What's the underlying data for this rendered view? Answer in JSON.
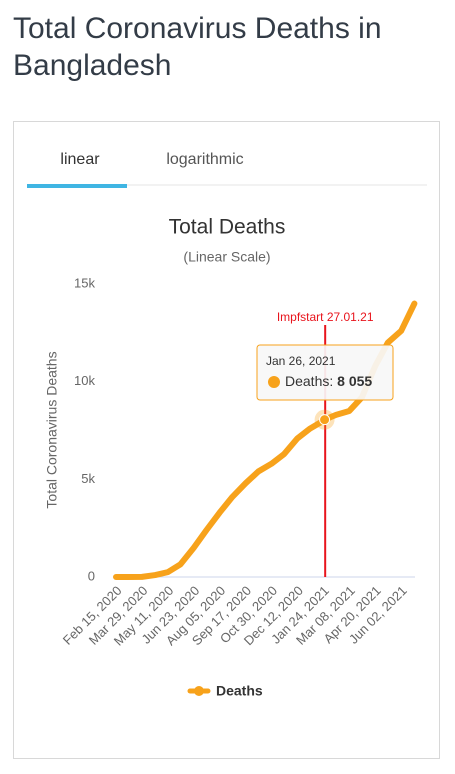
{
  "header": {
    "title": "Total Coronavirus Deaths in Bangladesh"
  },
  "tabs": [
    "linear",
    "logarithmic"
  ],
  "chart_data": {
    "type": "line",
    "title": "Total Deaths",
    "subtitle": "(Linear Scale)",
    "y_label": "Total Coronavirus Deaths",
    "x": [
      "2020-02-15",
      "2020-03-29",
      "2020-04-20",
      "2020-05-11",
      "2020-06-01",
      "2020-06-23",
      "2020-07-14",
      "2020-08-05",
      "2020-08-26",
      "2020-09-17",
      "2020-10-08",
      "2020-10-30",
      "2020-11-20",
      "2020-12-12",
      "2021-01-02",
      "2021-01-24",
      "2021-01-26",
      "2021-02-14",
      "2021-03-08",
      "2021-03-29",
      "2021-04-20",
      "2021-05-11",
      "2021-06-02",
      "2021-06-24"
    ],
    "series": [
      {
        "name": "Deaths",
        "color": "#f7a21b",
        "values": [
          0,
          5,
          100,
          250,
          650,
          1500,
          2400,
          3300,
          4100,
          4800,
          5400,
          5800,
          6300,
          7100,
          7600,
          8000,
          8055,
          8300,
          8500,
          9200,
          10800,
          12000,
          12600,
          14000
        ]
      }
    ],
    "xlim": [
      "2020-02-10",
      "2021-06-25"
    ],
    "xticks": [
      {
        "value": "2020-02-15",
        "label": "Feb 15, 2020"
      },
      {
        "value": "2020-03-29",
        "label": "Mar 29, 2020"
      },
      {
        "value": "2020-05-11",
        "label": "May 11, 2020"
      },
      {
        "value": "2020-06-23",
        "label": "Jun 23, 2020"
      },
      {
        "value": "2020-08-05",
        "label": "Aug 05, 2020"
      },
      {
        "value": "2020-09-17",
        "label": "Sep 17, 2020"
      },
      {
        "value": "2020-10-30",
        "label": "Oct 30, 2020"
      },
      {
        "value": "2020-12-12",
        "label": "Dec 12, 2020"
      },
      {
        "value": "2021-01-24",
        "label": "Jan 24, 2021"
      },
      {
        "value": "2021-03-08",
        "label": "Mar 08, 2021"
      },
      {
        "value": "2021-04-20",
        "label": "Apr 20, 2021"
      },
      {
        "value": "2021-06-02",
        "label": "Jun 02, 2021"
      }
    ],
    "ylim": [
      0,
      15000
    ],
    "yticks": [
      0,
      {
        "value": 5000,
        "label": "5k"
      },
      {
        "value": 10000,
        "label": "10k"
      },
      {
        "value": 15000,
        "label": "15k"
      }
    ],
    "annotation": {
      "text": "Impfstart 27.01.21",
      "x": "2021-01-27",
      "color": "#e8141c"
    },
    "tooltip": {
      "title": "Jan 26, 2021",
      "x": "2021-01-26",
      "name": "Deaths:",
      "value": 8055,
      "value_label": "8 055"
    }
  }
}
